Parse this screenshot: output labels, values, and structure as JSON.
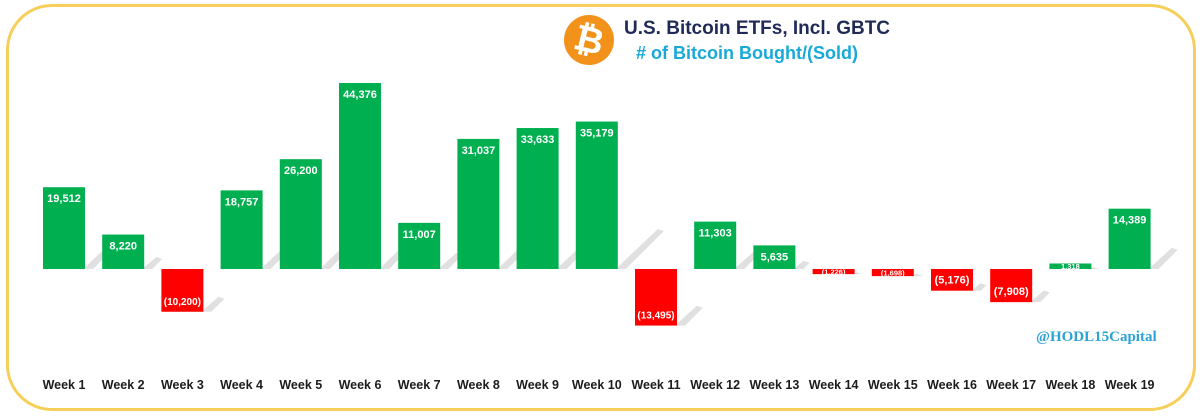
{
  "title": {
    "line1": "U.S. Bitcoin ETFs, Incl. GBTC",
    "line2": "# of Bitcoin Bought/(Sold)",
    "logo_glyph": "₿"
  },
  "watermark": "@HODL15Capital",
  "colors": {
    "positive": "#00b050",
    "negative": "#ff0000",
    "frame": "#f6cf5a",
    "title_primary": "#1f2a57",
    "title_secondary": "#19a9d8",
    "logo": "#f2921b"
  },
  "chart_data": {
    "type": "bar",
    "title": "U.S. Bitcoin ETFs, Incl. GBTC",
    "subtitle": "# of Bitcoin Bought/(Sold)",
    "xlabel": "",
    "ylabel": "",
    "grid": false,
    "legend": "none",
    "ylim": [
      -20000,
      50000
    ],
    "categories": [
      "Week 1",
      "Week 2",
      "Week 3",
      "Week 4",
      "Week 5",
      "Week 6",
      "Week 7",
      "Week 8",
      "Week 9",
      "Week 10",
      "Week 11",
      "Week 12",
      "Week 13",
      "Week 14",
      "Week 15",
      "Week 16",
      "Week 17",
      "Week 18",
      "Week 19"
    ],
    "values": [
      19512,
      8220,
      -10200,
      18757,
      26200,
      44376,
      11007,
      31037,
      33633,
      35179,
      -13495,
      11303,
      5635,
      -1226,
      -1698,
      -5176,
      -7908,
      1318,
      14389
    ],
    "data_labels": [
      "19,512",
      "8,220",
      "(10,200)",
      "18,757",
      "26,200",
      "44,376",
      "11,007",
      "31,037",
      "33,633",
      "35,179",
      "(13,495)",
      "11,303",
      "5,635",
      "(1,226)",
      "(1,698)",
      "(5,176)",
      "(7,908)",
      "1,318",
      "14,389"
    ]
  }
}
